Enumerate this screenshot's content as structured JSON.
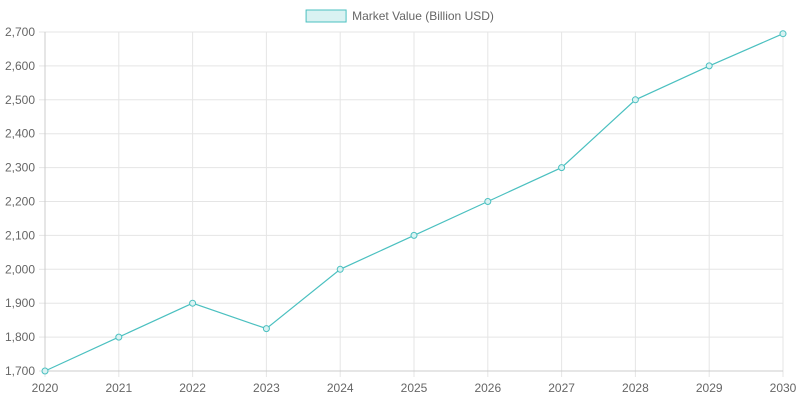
{
  "chart_data": {
    "type": "line",
    "categories": [
      "2020",
      "2021",
      "2022",
      "2023",
      "2024",
      "2025",
      "2026",
      "2027",
      "2028",
      "2029",
      "2030"
    ],
    "series": [
      {
        "name": "Market Value (Billion USD)",
        "values": [
          1700,
          1800,
          1900,
          1825,
          2000,
          2100,
          2200,
          2300,
          2500,
          2600,
          2695
        ]
      }
    ],
    "ylim": [
      1700,
      2700
    ],
    "yticks": [
      "1,700",
      "1,800",
      "1,900",
      "2,000",
      "2,100",
      "2,200",
      "2,300",
      "2,400",
      "2,500",
      "2,600",
      "2,700"
    ],
    "grid": true,
    "legend_position": "top-center",
    "colors": {
      "line": "#4bc0c0",
      "fill": "#d9f2f2",
      "grid": "#e5e5e5",
      "axis": "#cccccc",
      "text": "#666666"
    }
  }
}
